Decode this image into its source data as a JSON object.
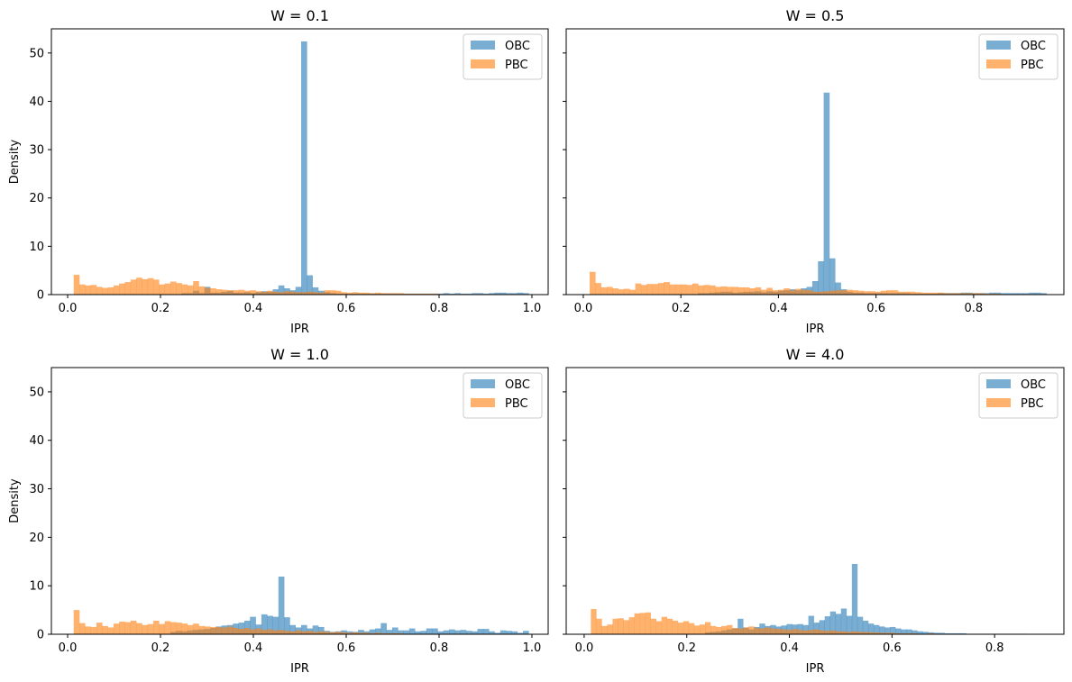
{
  "chart_data": [
    {
      "type": "bar",
      "title": "W = 0.1",
      "xlabel": "IPR",
      "ylabel": "Density",
      "xlim": [
        -0.035,
        1.035
      ],
      "ylim": [
        0,
        55
      ],
      "xticks": [
        0.0,
        0.2,
        0.4,
        0.6,
        0.8,
        1.0
      ],
      "xtick_labels": [
        "0.0",
        "0.2",
        "0.4",
        "0.6",
        "0.8",
        "1.0"
      ],
      "yticks": [
        0,
        10,
        20,
        30,
        40,
        50
      ],
      "ytick_labels": [
        "0",
        "10",
        "20",
        "30",
        "40",
        "50"
      ],
      "show_ytick_labels": true,
      "legend": "top-right",
      "bin_start": 0.013,
      "bin_width": 0.01225,
      "series": [
        {
          "name": "OBC",
          "color": "#1f77b4",
          "alpha": 0.6,
          "values": [
            0,
            0,
            0,
            0,
            0,
            0,
            0,
            0,
            0,
            0,
            0,
            0,
            0,
            0,
            0,
            0,
            0,
            0,
            0,
            0.3,
            0.3,
            0.8,
            0.3,
            1.6,
            0.4,
            0.4,
            0.6,
            0.8,
            0.4,
            0.4,
            0.5,
            0.3,
            0.5,
            0.7,
            0.6,
            1.1,
            1.9,
            1.3,
            0.9,
            1.6,
            52.4,
            4.0,
            1.5,
            0.8,
            0.5,
            0.3,
            0.2,
            0.2,
            0.2,
            0.2,
            0.2,
            0.2,
            0.2,
            0.2,
            0.2,
            0.2,
            0.2,
            0.2,
            0.2,
            0.2,
            0.2,
            0.2,
            0.2,
            0.2,
            0.2,
            0.3,
            0.2,
            0.3,
            0.2,
            0.2,
            0.3,
            0.3,
            0.2,
            0.3,
            0.4,
            0.4,
            0.3,
            0.3,
            0.4,
            0.3
          ]
        },
        {
          "name": "PBC",
          "color": "#ff7f0e",
          "alpha": 0.6,
          "values": [
            4.1,
            2.1,
            1.9,
            2.0,
            1.6,
            1.4,
            1.5,
            1.9,
            2.3,
            2.6,
            3.1,
            3.5,
            3.2,
            3.4,
            3.1,
            2.1,
            2.3,
            2.7,
            2.4,
            2.1,
            1.9,
            2.8,
            1.7,
            1.4,
            1.3,
            1.1,
            1.0,
            0.9,
            0.9,
            1.0,
            0.8,
            0.9,
            0.7,
            0.6,
            0.8,
            0.6,
            0.5,
            0.7,
            0.6,
            0.5,
            0.5,
            0.6,
            0.5,
            0.4,
            0.9,
            0.9,
            0.8,
            0.5,
            0.4,
            0.5,
            0.4,
            0.4,
            0.3,
            0.4,
            0.3,
            0.3,
            0.3,
            0.3,
            0.2,
            0.2,
            0.2,
            0.2,
            0.2,
            0.2,
            0.1,
            0.1,
            0.1,
            0.1,
            0.1,
            0.1,
            0.1,
            0.1,
            0.1,
            0.1,
            0.1,
            0.1,
            0.1,
            0.1,
            0.1,
            0.1
          ]
        }
      ]
    },
    {
      "type": "bar",
      "title": "W = 0.5",
      "xlabel": "IPR",
      "ylabel": "",
      "xlim": [
        -0.035,
        0.985
      ],
      "ylim": [
        0,
        55
      ],
      "xticks": [
        0.0,
        0.2,
        0.4,
        0.6,
        0.8
      ],
      "xtick_labels": [
        "0.0",
        "0.2",
        "0.4",
        "0.6",
        "0.8"
      ],
      "yticks": [
        0,
        10,
        20,
        30,
        40,
        50
      ],
      "ytick_labels": [
        "0",
        "10",
        "20",
        "30",
        "40",
        "50"
      ],
      "show_ytick_labels": false,
      "legend": "top-right",
      "bin_start": 0.013,
      "bin_width": 0.0117,
      "series": [
        {
          "name": "OBC",
          "color": "#1f77b4",
          "alpha": 0.6,
          "values": [
            0,
            0,
            0,
            0,
            0,
            0,
            0,
            0,
            0,
            0,
            0,
            0,
            0,
            0,
            0,
            0,
            0,
            0,
            0,
            0.3,
            0.3,
            0.4,
            0.5,
            0.6,
            0.6,
            0.4,
            0.5,
            0.6,
            0.6,
            0.7,
            0.5,
            0.7,
            0.6,
            0.8,
            0.9,
            1.1,
            0.9,
            1.3,
            1.6,
            2.8,
            6.9,
            41.8,
            7.5,
            2.5,
            1.1,
            0.6,
            0.4,
            0.4,
            0.3,
            0.3,
            0.3,
            0.3,
            0.3,
            0.3,
            0.3,
            0.3,
            0.2,
            0.2,
            0.2,
            0.2,
            0.2,
            0.3,
            0.3,
            0.3,
            0.3,
            0.4,
            0.4,
            0.3,
            0.3,
            0.3,
            0.4,
            0.4,
            0.3,
            0.3,
            0.3,
            0.3,
            0.3,
            0.4,
            0.4,
            0.3
          ]
        },
        {
          "name": "PBC",
          "color": "#ff7f0e",
          "alpha": 0.6,
          "values": [
            4.7,
            2.4,
            1.5,
            1.6,
            1.3,
            1.1,
            1.2,
            1.0,
            2.3,
            2.0,
            2.2,
            2.2,
            2.4,
            2.6,
            2.1,
            2.1,
            2.1,
            2.0,
            2.3,
            1.9,
            2.0,
            1.9,
            1.6,
            1.7,
            1.6,
            1.6,
            1.5,
            1.5,
            1.3,
            1.5,
            1.0,
            1.4,
            0.9,
            1.0,
            1.3,
            0.9,
            1.2,
            1.0,
            0.9,
            0.6,
            0.6,
            0.7,
            0.8,
            0.9,
            0.9,
            1.0,
            0.9,
            0.8,
            0.7,
            0.7,
            0.6,
            0.8,
            0.9,
            0.9,
            0.6,
            0.6,
            0.6,
            0.5,
            0.4,
            0.4,
            0.4,
            0.4,
            0.3,
            0.3,
            0.3,
            0.3,
            0.3,
            0.3,
            0.3,
            0.2,
            0.2,
            0.2,
            0.1,
            0.1,
            0.1,
            0.1,
            0.1,
            0.1,
            0.1,
            0.1
          ]
        }
      ]
    },
    {
      "type": "bar",
      "title": "W = 1.0",
      "xlabel": "IPR",
      "ylabel": "Density",
      "xlim": [
        -0.035,
        1.035
      ],
      "ylim": [
        0,
        55
      ],
      "xticks": [
        0.0,
        0.2,
        0.4,
        0.6,
        0.8,
        1.0
      ],
      "xtick_labels": [
        "0.0",
        "0.2",
        "0.4",
        "0.6",
        "0.8",
        "1.0"
      ],
      "yticks": [
        0,
        10,
        20,
        30,
        40,
        50
      ],
      "ytick_labels": [
        "0",
        "10",
        "20",
        "30",
        "40",
        "50"
      ],
      "show_ytick_labels": true,
      "legend": "top-right",
      "bin_start": 0.013,
      "bin_width": 0.01225,
      "series": [
        {
          "name": "OBC",
          "color": "#1f77b4",
          "alpha": 0.6,
          "values": [
            0,
            0,
            0,
            0,
            0,
            0,
            0,
            0,
            0,
            0,
            0,
            0,
            0,
            0,
            0,
            0,
            0,
            0.5,
            0.7,
            0.6,
            0.8,
            0.9,
            1.0,
            1.1,
            1.3,
            1.6,
            1.8,
            1.9,
            2.2,
            2.4,
            2.8,
            3.6,
            2.0,
            4.1,
            3.8,
            3.6,
            11.9,
            3.5,
            1.9,
            1.4,
            1.9,
            1.2,
            1.8,
            1.5,
            0.7,
            0.5,
            0.6,
            0.8,
            0.6,
            0.5,
            0.9,
            0.6,
            1.0,
            1.2,
            2.3,
            0.9,
            1.4,
            0.8,
            0.8,
            1.2,
            0.6,
            0.7,
            1.2,
            1.2,
            0.6,
            0.8,
            1.0,
            0.8,
            0.9,
            0.7,
            0.6,
            1.1,
            1.1,
            0.6,
            0.3,
            0.8,
            0.7,
            0.6,
            0.3,
            0.7
          ]
        },
        {
          "name": "PBC",
          "color": "#ff7f0e",
          "alpha": 0.6,
          "values": [
            5.0,
            2.3,
            1.6,
            1.5,
            2.4,
            1.7,
            1.4,
            2.2,
            2.6,
            2.5,
            2.8,
            2.3,
            1.9,
            2.1,
            2.8,
            2.1,
            2.7,
            2.5,
            2.4,
            2.2,
            1.9,
            2.2,
            1.7,
            1.6,
            1.5,
            1.5,
            1.4,
            1.6,
            1.3,
            1.1,
            1.3,
            1.0,
            1.2,
            0.9,
            1.0,
            0.8,
            0.9,
            0.7,
            0.6,
            0.8,
            0.6,
            0.7,
            0.5,
            0.6,
            0.5,
            0.4,
            0.5,
            0.4,
            0.3,
            0.4,
            0.3,
            0.3,
            0.2,
            0.3,
            0.2,
            0.2,
            0.2,
            0.2,
            0.1,
            0.1,
            0.1,
            0.1,
            0.1,
            0.1,
            0.1,
            0.1,
            0.1,
            0.1,
            0.1,
            0.1,
            0.1,
            0.1,
            0.1,
            0.1,
            0.1,
            0.1,
            0.1,
            0.1,
            0.1,
            0.1
          ]
        }
      ]
    },
    {
      "type": "bar",
      "title": "W = 4.0",
      "xlabel": "IPR",
      "ylabel": "",
      "xlim": [
        -0.035,
        0.935
      ],
      "ylim": [
        0,
        55
      ],
      "xticks": [
        0.0,
        0.2,
        0.4,
        0.6,
        0.8
      ],
      "xtick_labels": [
        "0.0",
        "0.2",
        "0.4",
        "0.6",
        "0.8"
      ],
      "yticks": [
        0,
        10,
        20,
        30,
        40,
        50
      ],
      "ytick_labels": [
        "0",
        "10",
        "20",
        "30",
        "40",
        "50"
      ],
      "show_ytick_labels": false,
      "legend": "top-right",
      "bin_start": 0.013,
      "bin_width": 0.0106,
      "series": [
        {
          "name": "OBC",
          "color": "#1f77b4",
          "alpha": 0.6,
          "values": [
            0,
            0,
            0,
            0,
            0,
            0,
            0,
            0,
            0,
            0,
            0,
            0,
            0,
            0,
            0,
            0,
            0,
            0,
            0,
            0,
            0,
            0.4,
            0.5,
            0.6,
            0.8,
            1.0,
            1.2,
            3.2,
            1.4,
            1.0,
            1.5,
            2.2,
            1.7,
            1.9,
            1.6,
            1.8,
            2.1,
            2.0,
            2.1,
            1.9,
            3.8,
            2.4,
            2.9,
            3.7,
            4.7,
            4.2,
            5.3,
            3.8,
            14.5,
            3.6,
            2.8,
            2.2,
            1.9,
            1.6,
            1.4,
            1.5,
            1.2,
            1.0,
            1.0,
            0.8,
            0.6,
            0.5,
            0.4,
            0.3,
            0.3,
            0.2,
            0.2,
            0.2,
            0.2,
            0.1,
            0.1,
            0.1,
            0.1,
            0.1,
            0.1,
            0.1,
            0.1,
            0.1,
            0.1,
            0.1
          ]
        },
        {
          "name": "PBC",
          "color": "#ff7f0e",
          "alpha": 0.6,
          "values": [
            5.2,
            3.2,
            1.7,
            2.0,
            3.2,
            3.3,
            2.9,
            3.5,
            4.3,
            4.4,
            4.5,
            3.2,
            2.7,
            3.6,
            3.2,
            2.8,
            2.4,
            2.7,
            2.3,
            1.8,
            2.0,
            2.5,
            1.7,
            1.5,
            1.7,
            1.9,
            1.3,
            1.2,
            1.4,
            1.6,
            1.3,
            1.2,
            1.4,
            1.2,
            1.1,
            1.0,
            0.9,
            1.1,
            0.9,
            0.8,
            0.9,
            1.0,
            0.8,
            0.7,
            0.8,
            0.6,
            0.6,
            0.5,
            0.6,
            0.5,
            0.5,
            0.4,
            0.4,
            0.3,
            0.3,
            0.3,
            0.2,
            0.2,
            0.2,
            0.2,
            0.1,
            0.1,
            0.2,
            0.1,
            0.1,
            0.1,
            0.1,
            0.1,
            0.1,
            0.1,
            0.1,
            0.1,
            0.1,
            0.1,
            0.1,
            0.1,
            0.1,
            0.1,
            0.1,
            0.1
          ]
        }
      ]
    }
  ]
}
